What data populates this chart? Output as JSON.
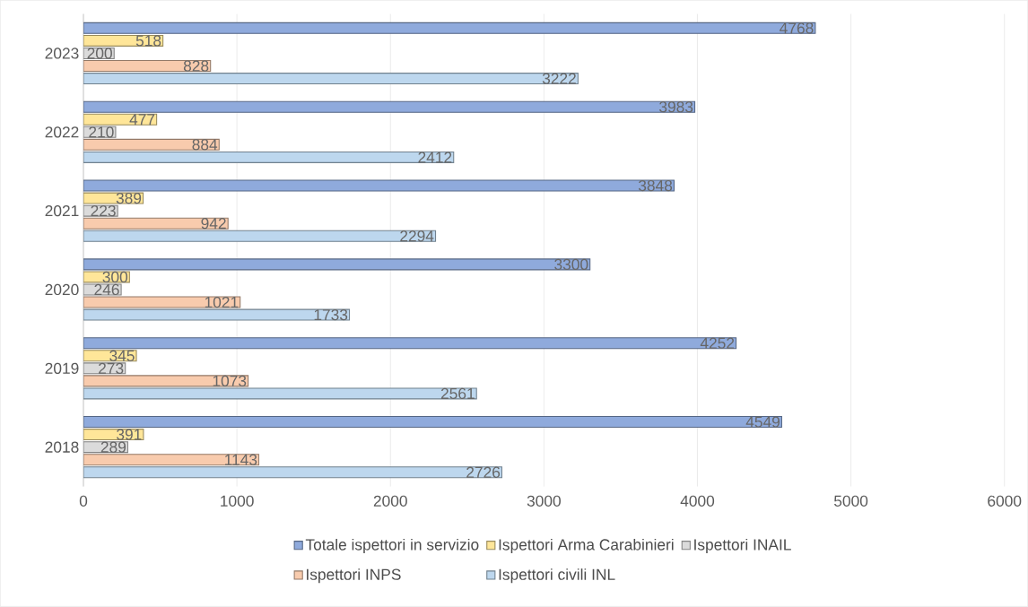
{
  "chart_data": {
    "type": "bar",
    "orientation": "horizontal",
    "categories": [
      "2023",
      "2022",
      "2021",
      "2020",
      "2019",
      "2018"
    ],
    "series": [
      {
        "name": "Totale ispettori in servizio",
        "color": "#8faadc",
        "values": [
          4768,
          3983,
          3848,
          3300,
          4252,
          4549
        ]
      },
      {
        "name": "Ispettori Arma Carabinieri",
        "color": "#ffe699",
        "values": [
          518,
          477,
          389,
          300,
          345,
          391
        ]
      },
      {
        "name": "Ispettori INAIL",
        "color": "#dbdbdb",
        "values": [
          200,
          210,
          223,
          246,
          273,
          289
        ]
      },
      {
        "name": "Ispettori INPS",
        "color": "#f8cbad",
        "values": [
          828,
          884,
          942,
          1021,
          1073,
          1143
        ]
      },
      {
        "name": "Ispettori civili INL",
        "color": "#bdd7ee",
        "values": [
          3222,
          2412,
          2294,
          1733,
          2561,
          2726
        ]
      }
    ],
    "xlim": [
      0,
      6000
    ],
    "xticks": [
      0,
      1000,
      2000,
      3000,
      4000,
      5000,
      6000
    ],
    "grid": "x",
    "legend": "bottom",
    "data_labels": true
  }
}
